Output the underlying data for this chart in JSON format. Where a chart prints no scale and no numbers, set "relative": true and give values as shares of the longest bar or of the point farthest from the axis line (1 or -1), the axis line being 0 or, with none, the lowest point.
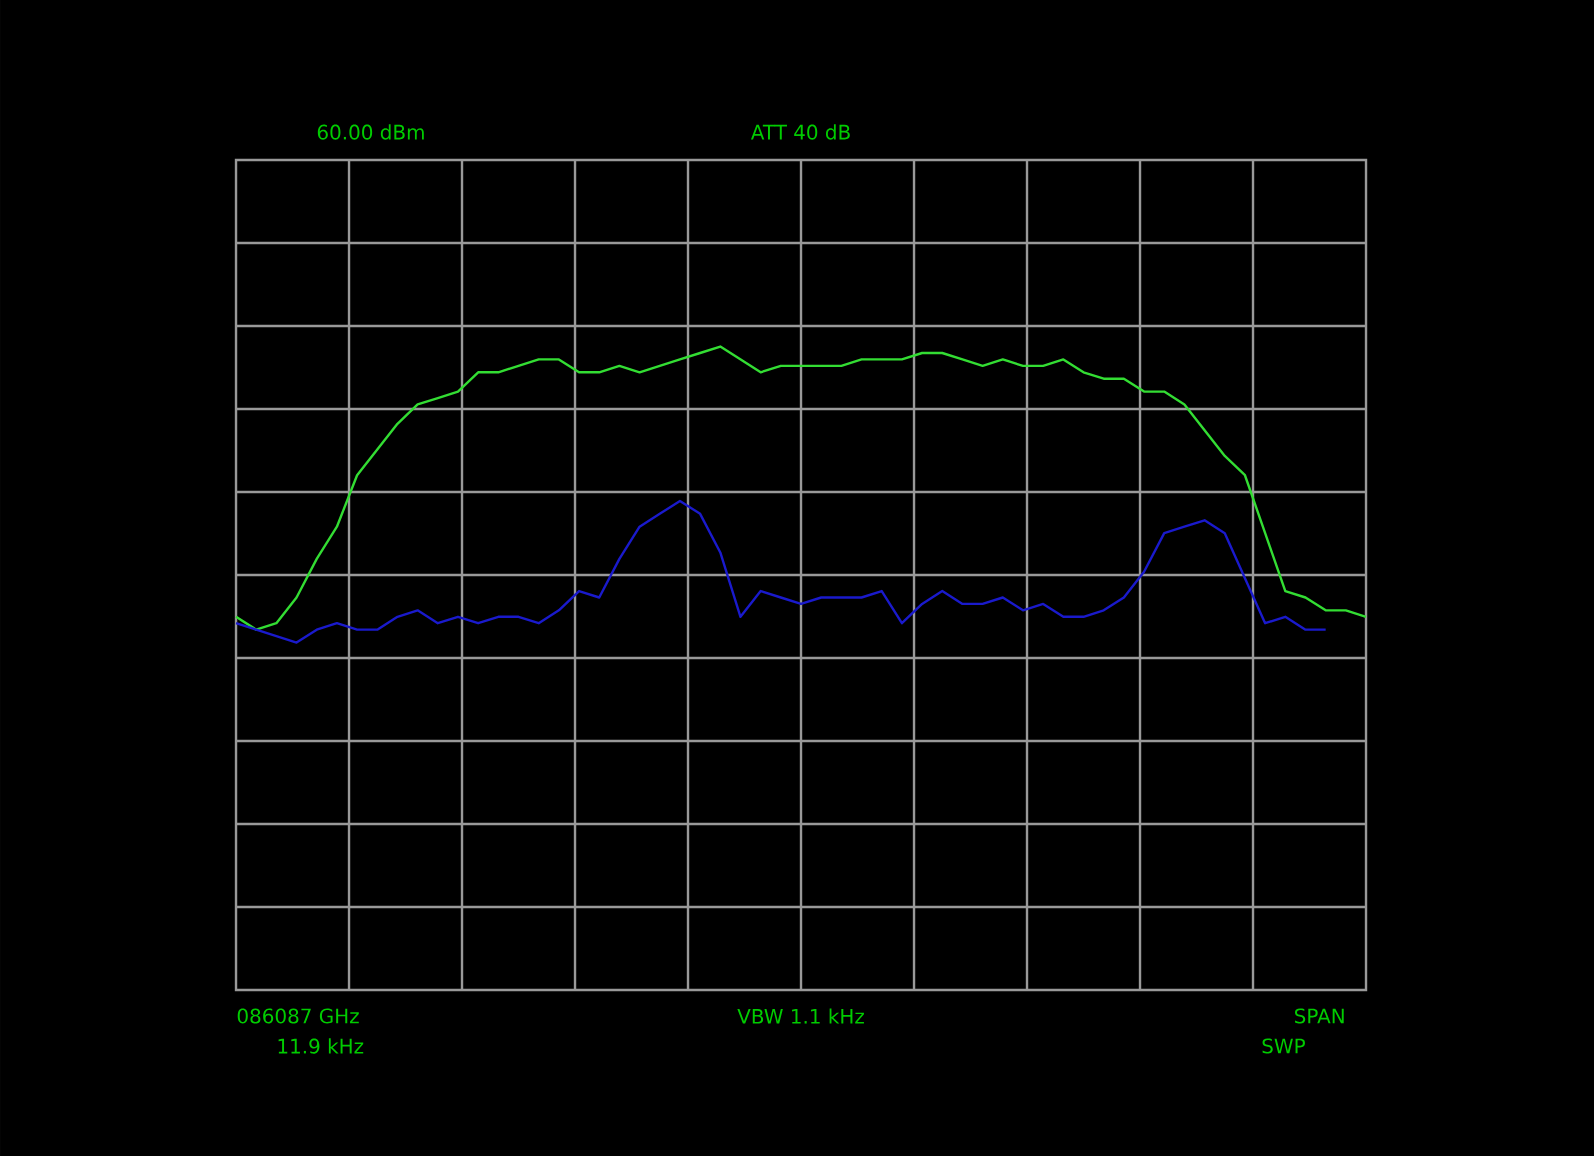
{
  "chart_data": {
    "type": "line",
    "relative": true,
    "grid": true,
    "categories": [
      null,
      null,
      null,
      null,
      null,
      null,
      null,
      null,
      null,
      null,
      null,
      null,
      null,
      null,
      null,
      null,
      null,
      null,
      null,
      null,
      null,
      null,
      null,
      null,
      null,
      null,
      null,
      null,
      null,
      null,
      null,
      null,
      null,
      null,
      null,
      null,
      null,
      null,
      null,
      null,
      null,
      null,
      null,
      null,
      null,
      null,
      null,
      null,
      null,
      null,
      null,
      null,
      null,
      null,
      null,
      null,
      null
    ],
    "series": [
      {
        "color": "#33dd33",
        "values": [
          0.58,
          0.56,
          0.57,
          0.61,
          0.67,
          0.72,
          0.8,
          0.84,
          0.88,
          0.91,
          0.92,
          0.93,
          0.96,
          0.96,
          0.97,
          0.98,
          0.98,
          0.96,
          0.96,
          0.97,
          0.96,
          0.97,
          0.98,
          0.99,
          1.0,
          0.98,
          0.96,
          0.97,
          0.97,
          0.97,
          0.97,
          0.98,
          0.98,
          0.98,
          0.99,
          0.99,
          0.98,
          0.97,
          0.98,
          0.97,
          0.97,
          0.98,
          0.96,
          0.95,
          0.95,
          0.93,
          0.93,
          0.91,
          0.87,
          0.83,
          0.8,
          0.71,
          0.62,
          0.61,
          0.59,
          0.59,
          0.58
        ]
      },
      {
        "color": "#1a1acc",
        "values": [
          0.57,
          0.56,
          0.55,
          0.54,
          0.56,
          0.57,
          0.56,
          0.56,
          0.58,
          0.59,
          0.57,
          0.58,
          0.57,
          0.58,
          0.58,
          0.57,
          0.59,
          0.62,
          0.61,
          0.67,
          0.72,
          0.74,
          0.76,
          0.74,
          0.68,
          0.58,
          0.62,
          0.61,
          0.6,
          0.61,
          0.61,
          0.61,
          0.62,
          0.57,
          0.6,
          0.62,
          0.6,
          0.6,
          0.61,
          0.59,
          0.6,
          0.58,
          0.58,
          0.59,
          0.61,
          0.65,
          0.71,
          0.72,
          0.73,
          0.71,
          0.64,
          0.57,
          0.58,
          0.56,
          0.56,
          null,
          null
        ]
      }
    ],
    "annotations": [
      "60.00 dBm",
      "ATT 40 dB",
      "086087 GHz",
      "11.9 kHz",
      "VBW 1.1 kHz",
      "SPAN",
      "SWP"
    ]
  }
}
